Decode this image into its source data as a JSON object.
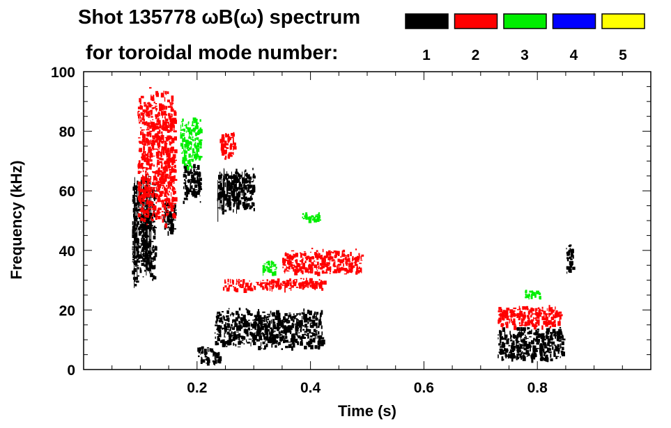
{
  "chart_data": {
    "type": "heatmap",
    "title_line1": "Shot 135778 ωB(ω) spectrum",
    "title_line2": "for toroidal mode number:",
    "xlabel": "Time (s)",
    "ylabel": "Frequency (kHz)",
    "xlim": [
      0.0,
      1.0
    ],
    "ylim": [
      0,
      100
    ],
    "x_ticks": [
      0.2,
      0.4,
      0.6,
      0.8
    ],
    "x_tick_labels": [
      "0.2",
      "0.4",
      "0.6",
      "0.8"
    ],
    "y_ticks": [
      0,
      20,
      40,
      60,
      80,
      100
    ],
    "y_tick_labels": [
      "0",
      "20",
      "40",
      "60",
      "80",
      "100"
    ],
    "legend": [
      {
        "label": "1",
        "color": "#000000"
      },
      {
        "label": "2",
        "color": "#ff0000"
      },
      {
        "label": "3",
        "color": "#00ee00"
      },
      {
        "label": "4",
        "color": "#0000ff"
      },
      {
        "label": "5",
        "color": "#ffff00"
      }
    ],
    "features": [
      {
        "mode": "1",
        "t": [
          0.085,
          0.125
        ],
        "f": [
          28,
          66
        ]
      },
      {
        "mode": "1",
        "t": [
          0.14,
          0.16
        ],
        "f": [
          45,
          58
        ]
      },
      {
        "mode": "1",
        "t": [
          0.175,
          0.205
        ],
        "f": [
          56,
          70
        ]
      },
      {
        "mode": "1",
        "t": [
          0.2,
          0.24
        ],
        "f": [
          2,
          8
        ]
      },
      {
        "mode": "1",
        "t": [
          0.235,
          0.3
        ],
        "f": [
          53,
          68
        ]
      },
      {
        "mode": "1",
        "t": [
          0.23,
          0.42
        ],
        "f": [
          7,
          21
        ]
      },
      {
        "mode": "1",
        "t": [
          0.73,
          0.845
        ],
        "f": [
          3,
          15
        ]
      },
      {
        "mode": "1",
        "t": [
          0.85,
          0.862
        ],
        "f": [
          31,
          43
        ]
      },
      {
        "mode": "2",
        "t": [
          0.095,
          0.16
        ],
        "f": [
          48,
          96
        ]
      },
      {
        "mode": "2",
        "t": [
          0.24,
          0.265
        ],
        "f": [
          71,
          81
        ]
      },
      {
        "mode": "2",
        "t": [
          0.245,
          0.425
        ],
        "f": [
          27,
          31
        ]
      },
      {
        "mode": "2",
        "t": [
          0.35,
          0.49
        ],
        "f": [
          32,
          41
        ]
      },
      {
        "mode": "2",
        "t": [
          0.73,
          0.84
        ],
        "f": [
          14,
          22
        ]
      },
      {
        "mode": "3",
        "t": [
          0.17,
          0.205
        ],
        "f": [
          68,
          85
        ]
      },
      {
        "mode": "3",
        "t": [
          0.315,
          0.34
        ],
        "f": [
          32,
          37
        ]
      },
      {
        "mode": "3",
        "t": [
          0.385,
          0.415
        ],
        "f": [
          50,
          53
        ]
      },
      {
        "mode": "3",
        "t": [
          0.775,
          0.805
        ],
        "f": [
          24,
          27
        ]
      }
    ]
  }
}
